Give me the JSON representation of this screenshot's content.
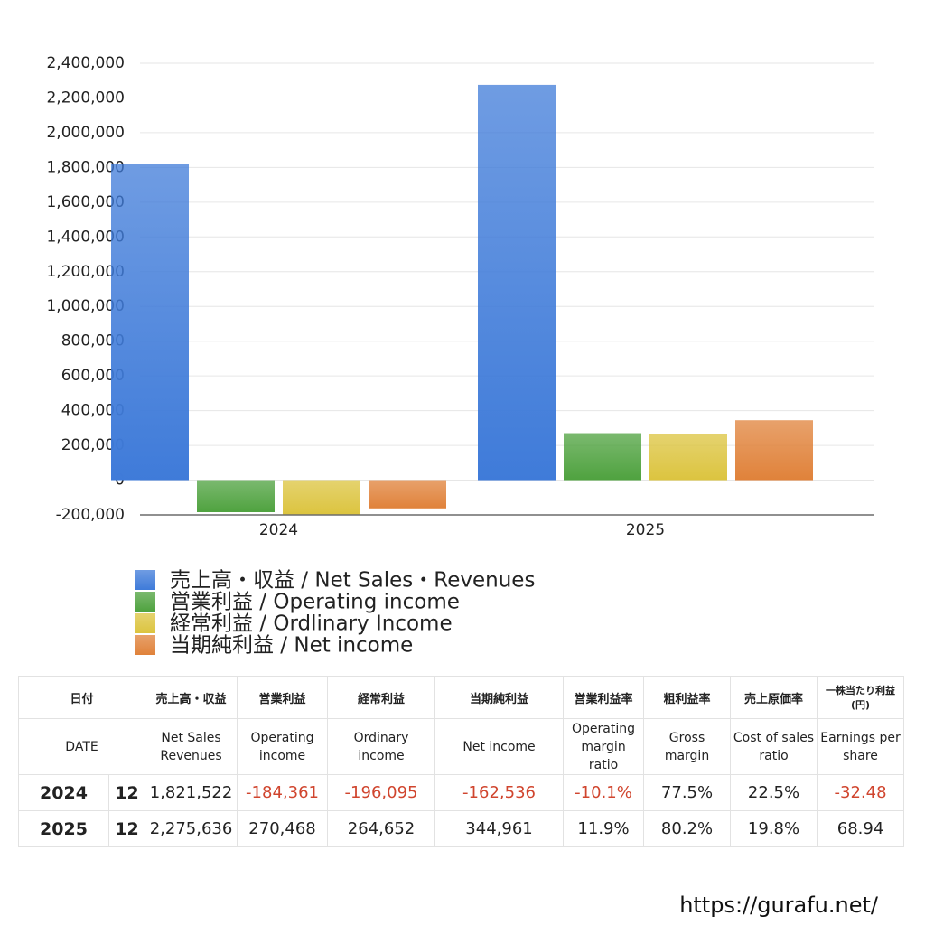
{
  "chart_data": {
    "type": "bar",
    "categories": [
      "2024",
      "2025"
    ],
    "series": [
      {
        "name": "売上高・収益 / Net Sales・Revenues",
        "color": "#3f7bd9",
        "values": [
          1821522,
          2275636
        ]
      },
      {
        "name": "営業利益 / Operating income",
        "color": "#4fa23f",
        "values": [
          -184361,
          270468
        ]
      },
      {
        "name": "経常利益 / Ordlinary Income",
        "color": "#dcc43f",
        "values": [
          -196095,
          264652
        ]
      },
      {
        "name": "当期純利益 / Net income",
        "color": "#e0823a",
        "values": [
          -162536,
          344961
        ]
      }
    ],
    "ylim": [
      -200000,
      2400000
    ],
    "yticks": [
      {
        "value": -200000,
        "label": "-200,000"
      },
      0,
      {
        "value": 200000,
        "label": "200,000"
      },
      {
        "value": 400000,
        "label": "400,000"
      },
      {
        "value": 600000,
        "label": "600,000"
      },
      {
        "value": 800000,
        "label": "800,000"
      },
      {
        "value": 1000000,
        "label": "1,000,000"
      },
      {
        "value": 1200000,
        "label": "1,200,000"
      },
      {
        "value": 1400000,
        "label": "1,400,000"
      },
      {
        "value": 1600000,
        "label": "1,600,000"
      },
      {
        "value": 1800000,
        "label": "1,800,000"
      },
      {
        "value": 2000000,
        "label": "2,000,000"
      },
      {
        "value": 2200000,
        "label": "2,200,000"
      },
      {
        "value": 2400000,
        "label": "2,400,000"
      }
    ],
    "grid": true
  },
  "table": {
    "header_ja": [
      "日付",
      "売上高・収益",
      "営業利益",
      "経常利益",
      "当期純利益",
      "営業利益率",
      "粗利益率",
      "売上原価率",
      "一株当たり利益(円)"
    ],
    "header_en": [
      "DATE",
      "Net Sales Revenues",
      "Operating income",
      "Ordinary income",
      "Net income",
      "Operating margin ratio",
      "Gross margin",
      "Cost of sales ratio",
      "Earnings per share"
    ],
    "rows": [
      [
        "2024",
        "12",
        "1,821,522",
        "-184,361",
        "-196,095",
        "-162,536",
        "-10.1%",
        "77.5%",
        "22.5%",
        "-32.48"
      ],
      [
        "2025",
        "12",
        "2,275,636",
        "270,468",
        "264,652",
        "344,961",
        "11.9%",
        "80.2%",
        "19.8%",
        "68.94"
      ]
    ]
  },
  "footer": "https://gurafu.net/"
}
